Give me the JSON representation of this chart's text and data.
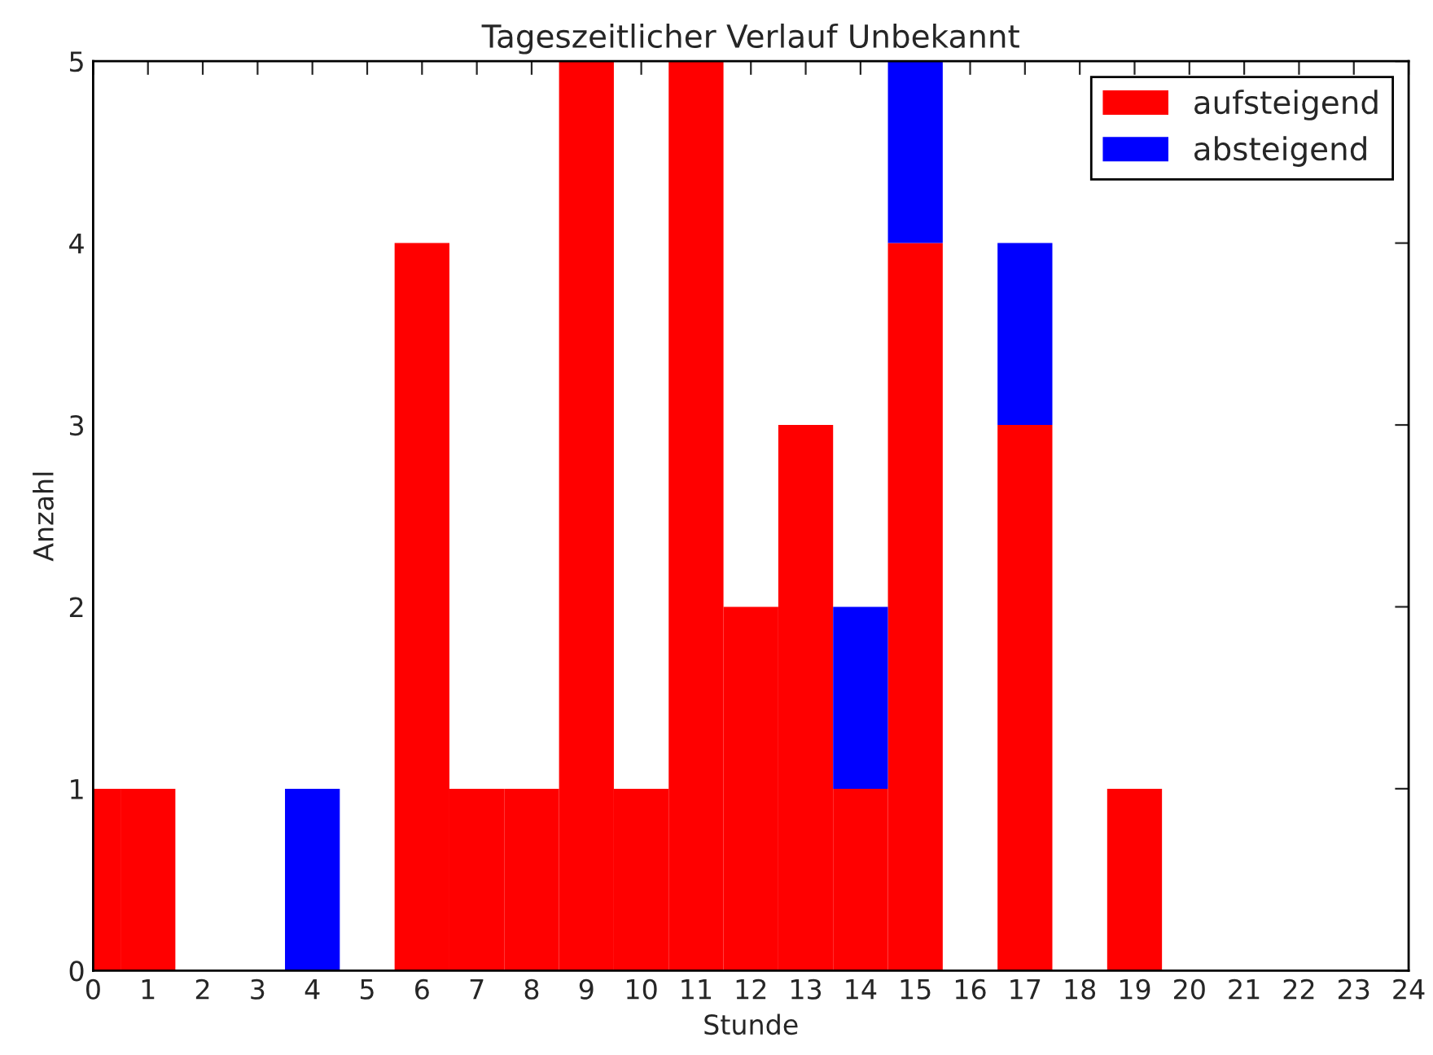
{
  "chart_data": {
    "type": "bar",
    "title": "Tageszeitlicher Verlauf Unbekannt",
    "xlabel": "Stunde",
    "ylabel": "Anzahl",
    "x": [
      0,
      1,
      2,
      3,
      4,
      5,
      6,
      7,
      8,
      9,
      10,
      11,
      12,
      13,
      14,
      15,
      16,
      17,
      18,
      19,
      20,
      21,
      22,
      23
    ],
    "stacked": true,
    "series": [
      {
        "name": "aufsteigend",
        "color": "#ff0000",
        "values": [
          1,
          1,
          0,
          0,
          0,
          0,
          4,
          1,
          1,
          5,
          1,
          5,
          2,
          3,
          1,
          4,
          0,
          3,
          0,
          1,
          0,
          0,
          0,
          0
        ]
      },
      {
        "name": "absteigend",
        "color": "#0000ff",
        "values": [
          0,
          0,
          0,
          0,
          1,
          0,
          0,
          0,
          0,
          0,
          0,
          0,
          0,
          0,
          1,
          1,
          0,
          1,
          0,
          0,
          0,
          0,
          0,
          0
        ]
      }
    ],
    "xlim": [
      0,
      24
    ],
    "xticks": [
      0,
      1,
      2,
      3,
      4,
      5,
      6,
      7,
      8,
      9,
      10,
      11,
      12,
      13,
      14,
      15,
      16,
      17,
      18,
      19,
      20,
      21,
      22,
      23,
      24
    ],
    "ylim": [
      0,
      5
    ],
    "yticks": [
      0,
      1,
      2,
      3,
      4,
      5
    ],
    "legend": "top right"
  }
}
